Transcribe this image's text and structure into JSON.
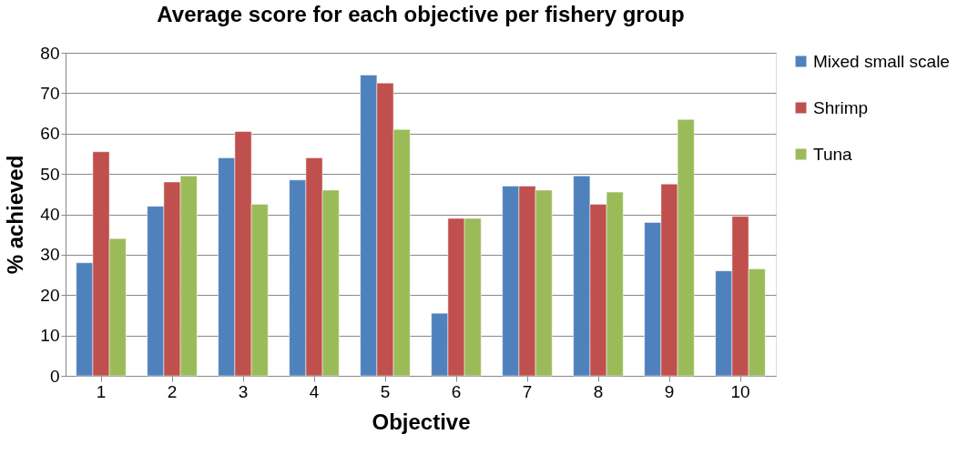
{
  "chart_data": {
    "type": "bar",
    "title": "Average score for each objective per fishery group",
    "xlabel": "Objective",
    "ylabel": "% achieved",
    "categories": [
      "1",
      "2",
      "3",
      "4",
      "5",
      "6",
      "7",
      "8",
      "9",
      "10"
    ],
    "series": [
      {
        "name": "Mixed small scale",
        "color": "#4f81bd",
        "values": [
          28,
          42,
          54,
          48.5,
          74.5,
          15.5,
          47,
          49.5,
          38,
          26
        ]
      },
      {
        "name": "Shrimp",
        "color": "#c0504d",
        "values": [
          55.5,
          48,
          60.5,
          54,
          72.5,
          39,
          47,
          42.5,
          47.5,
          39.5
        ]
      },
      {
        "name": "Tuna",
        "color": "#9bbb59",
        "values": [
          34,
          49.5,
          42.5,
          46,
          61,
          39,
          46,
          45.5,
          63.5,
          26.5
        ]
      }
    ],
    "ylim": [
      0,
      80
    ],
    "yticks": [
      0,
      10,
      20,
      30,
      40,
      50,
      60,
      70,
      80
    ],
    "grid": "y",
    "legend": "right"
  }
}
